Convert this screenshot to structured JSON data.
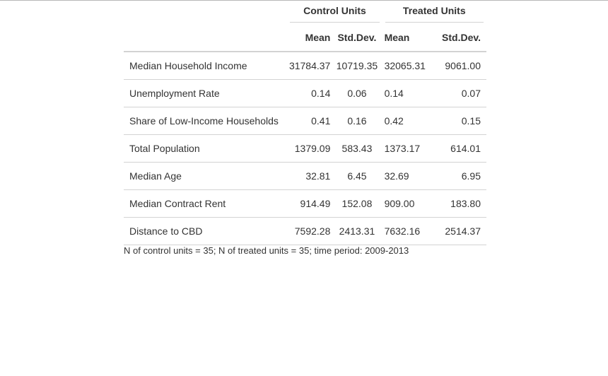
{
  "table": {
    "group_headers": {
      "control": "Control Units",
      "treated": "Treated Units"
    },
    "sub_headers": [
      "Mean",
      "Std.Dev.",
      "Mean",
      "Std.Dev."
    ],
    "rows": [
      {
        "label": "Median Household Income",
        "control_mean": "31784.37",
        "control_sd": "10719.35",
        "treated_mean": "32065.31",
        "treated_sd": "9061.00"
      },
      {
        "label": "Unemployment Rate",
        "control_mean": "0.14",
        "control_sd": "0.06",
        "treated_mean": "0.14",
        "treated_sd": "0.07"
      },
      {
        "label": "Share of Low-Income Households",
        "control_mean": "0.41",
        "control_sd": "0.16",
        "treated_mean": "0.42",
        "treated_sd": "0.15"
      },
      {
        "label": "Total Population",
        "control_mean": "1379.09",
        "control_sd": "583.43",
        "treated_mean": "1373.17",
        "treated_sd": "614.01"
      },
      {
        "label": "Median Age",
        "control_mean": "32.81",
        "control_sd": "6.45",
        "treated_mean": "32.69",
        "treated_sd": "6.95"
      },
      {
        "label": "Median Contract Rent",
        "control_mean": "914.49",
        "control_sd": "152.08",
        "treated_mean": "909.00",
        "treated_sd": "183.80"
      },
      {
        "label": "Distance to CBD",
        "control_mean": "7592.28",
        "control_sd": "2413.31",
        "treated_mean": "7632.16",
        "treated_sd": "2514.37"
      }
    ],
    "footnote": "N of control units = 35; N of treated units = 35; time period: 2009-2013"
  }
}
